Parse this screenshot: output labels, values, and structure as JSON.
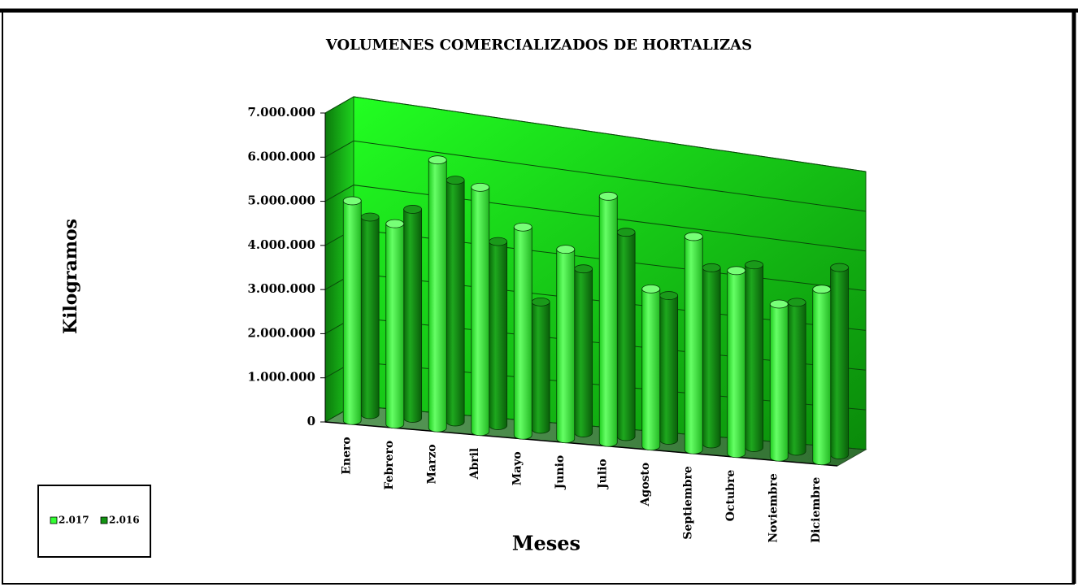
{
  "chart_data": {
    "type": "bar3d",
    "title": "VOLUMENES COMERCIALIZADOS DE HORTALIZAS",
    "x_label": "Meses",
    "y_label": "Kilogramos",
    "categories": [
      "Enero",
      "Febrero",
      "Marzo",
      "Abril",
      "Mayo",
      "Junio",
      "Julio",
      "Agosto",
      "Septiembre",
      "Octubre",
      "Noviembre",
      "Diciembre"
    ],
    "series": [
      {
        "name": "2.017",
        "color": "#33ff33",
        "values": [
          5000000,
          4600000,
          6200000,
          5700000,
          4900000,
          4500000,
          5900000,
          3800000,
          5200000,
          4500000,
          3800000,
          4300000
        ]
      },
      {
        "name": "2.016",
        "color": "#129412",
        "values": [
          4500000,
          4800000,
          5600000,
          4300000,
          3000000,
          3900000,
          4900000,
          3500000,
          4300000,
          4500000,
          3700000,
          4700000
        ]
      }
    ],
    "ylim": [
      0,
      7000000
    ],
    "yticks": [
      0,
      {
        "value": 1000000,
        "label": "1.000.000"
      },
      {
        "value": 2000000,
        "label": "2.000.000"
      },
      {
        "value": 3000000,
        "label": "3.000.000"
      },
      {
        "value": 4000000,
        "label": "4.000.000"
      },
      {
        "value": 5000000,
        "label": "5.000.000"
      },
      {
        "value": 6000000,
        "label": "6.000.000"
      },
      {
        "value": 7000000,
        "label": "7.000.000"
      }
    ],
    "grid": true,
    "legend": "bottom-left"
  }
}
